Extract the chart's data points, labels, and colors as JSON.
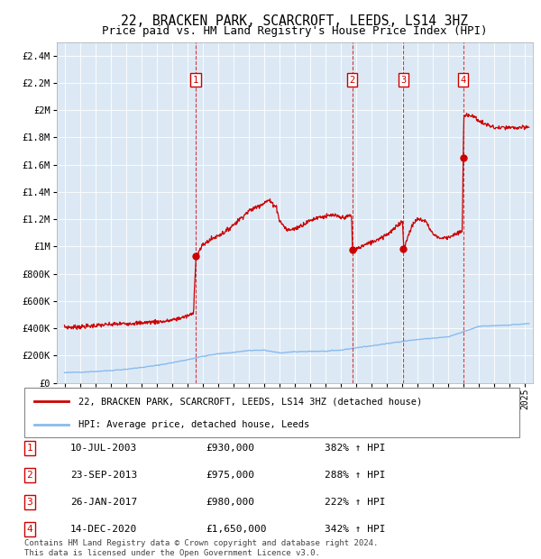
{
  "title": "22, BRACKEN PARK, SCARCROFT, LEEDS, LS14 3HZ",
  "subtitle": "Price paid vs. HM Land Registry's House Price Index (HPI)",
  "title_fontsize": 10.5,
  "subtitle_fontsize": 9,
  "plot_bg_color": "#dce9f5",
  "legend_line1": "22, BRACKEN PARK, SCARCROFT, LEEDS, LS14 3HZ (detached house)",
  "legend_line2": "HPI: Average price, detached house, Leeds",
  "transactions": [
    {
      "num": 1,
      "date": "10-JUL-2003",
      "year": 2003.53,
      "price": 930000,
      "pct": "382%",
      "dir": "↑"
    },
    {
      "num": 2,
      "date": "23-SEP-2013",
      "year": 2013.73,
      "price": 975000,
      "pct": "288%",
      "dir": "↑"
    },
    {
      "num": 3,
      "date": "26-JAN-2017",
      "year": 2017.07,
      "price": 980000,
      "pct": "222%",
      "dir": "↑"
    },
    {
      "num": 4,
      "date": "14-DEC-2020",
      "year": 2020.95,
      "price": 1650000,
      "pct": "342%",
      "dir": "↑"
    }
  ],
  "footer_line1": "Contains HM Land Registry data © Crown copyright and database right 2024.",
  "footer_line2": "This data is licensed under the Open Government Licence v3.0.",
  "ylim": [
    0,
    2500000
  ],
  "yticks": [
    0,
    200000,
    400000,
    600000,
    800000,
    1000000,
    1200000,
    1400000,
    1600000,
    1800000,
    2000000,
    2200000,
    2400000
  ],
  "xlim_start": 1994.5,
  "xlim_end": 2025.5,
  "red_color": "#cc0000",
  "blue_color": "#88bbee",
  "grid_color": "#ffffff"
}
